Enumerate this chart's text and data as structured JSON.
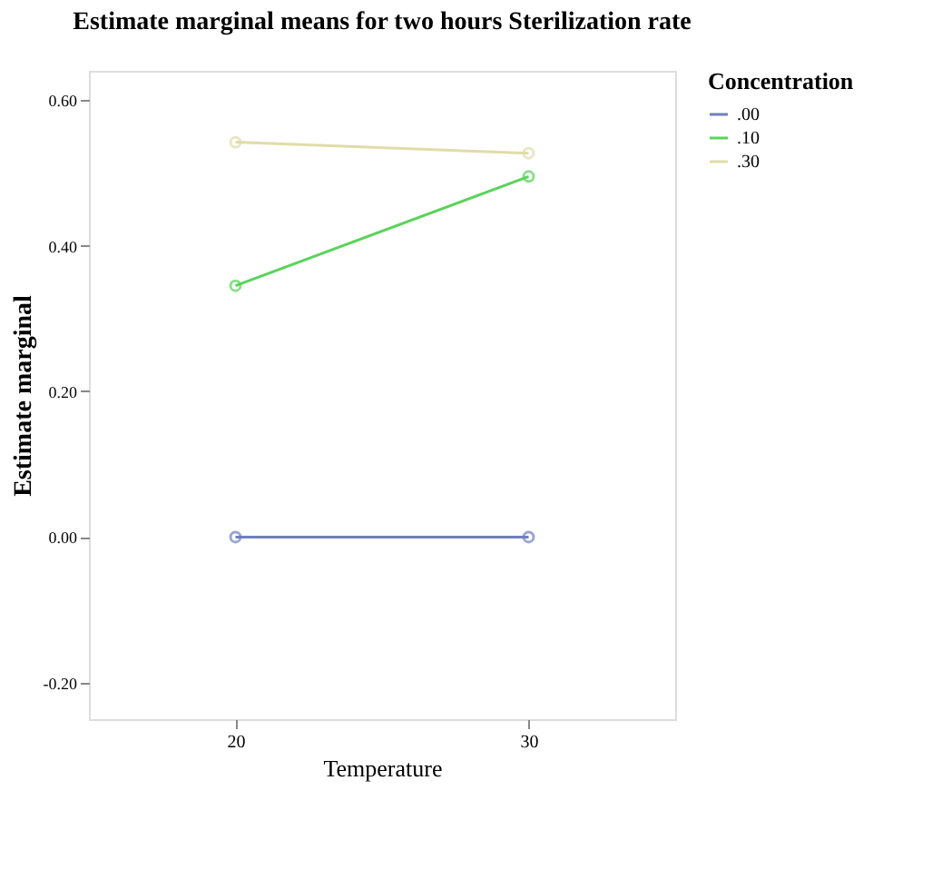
{
  "chart_data": {
    "type": "line",
    "title": "Estimate marginal means for two hours Sterilization rate",
    "xlabel": "Temperature",
    "ylabel": "Estimate marginal",
    "legend_title": "Concentration",
    "categories": [
      "20",
      "30"
    ],
    "series": [
      {
        "name": ".00",
        "color": "#6f7fbf",
        "values": [
          0.0,
          0.0
        ]
      },
      {
        "name": ".10",
        "color": "#5ad35a",
        "values": [
          0.345,
          0.495
        ]
      },
      {
        "name": ".30",
        "color": "#e0dca8",
        "values": [
          0.542,
          0.527
        ]
      }
    ],
    "ylim": [
      -0.25,
      0.64
    ],
    "yticks": [
      {
        "value": -0.2,
        "label": "-0.20"
      },
      {
        "value": 0.0,
        "label": "0.00"
      },
      {
        "value": 0.2,
        "label": "0.20"
      },
      {
        "value": 0.4,
        "label": "0.40"
      },
      {
        "value": 0.6,
        "label": "0.60"
      }
    ],
    "grid": false,
    "legend": "top right",
    "marker": "circle"
  }
}
